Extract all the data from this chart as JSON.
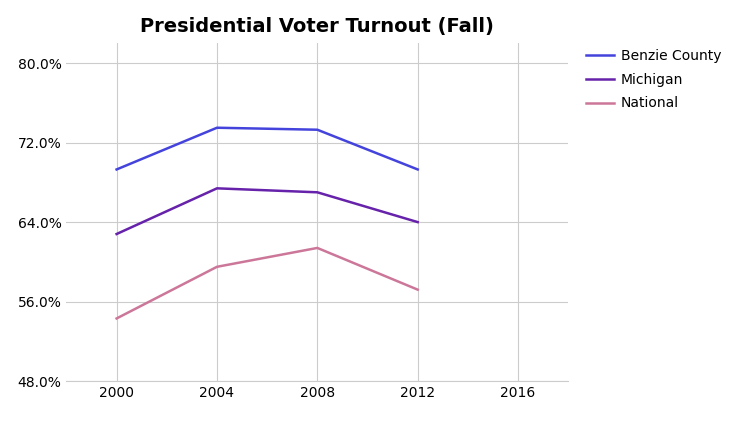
{
  "title": "Presidential Voter Turnout (Fall)",
  "years": [
    2000,
    2004,
    2008,
    2012
  ],
  "x_ticks": [
    2000,
    2004,
    2008,
    2012,
    2016
  ],
  "benzie_county": [
    0.693,
    0.735,
    0.733,
    0.693
  ],
  "michigan": [
    0.628,
    0.674,
    0.67,
    0.64
  ],
  "national": [
    0.543,
    0.595,
    0.614,
    0.572
  ],
  "ylim": [
    0.48,
    0.82
  ],
  "y_ticks": [
    0.48,
    0.56,
    0.64,
    0.72,
    0.8
  ],
  "y_tick_labels": [
    "48.0%",
    "56.0%",
    "64.0%",
    "72.0%",
    "80.0%"
  ],
  "colors": {
    "benzie": "#4444dd",
    "michigan": "#6622aa",
    "national": "#cc7799"
  },
  "legend_labels": [
    "Benzie County",
    "Michigan",
    "National"
  ],
  "background_color": "#ffffff",
  "grid_color": "#cccccc",
  "line_width": 1.8,
  "xlim": [
    1998,
    2018
  ],
  "title_fontsize": 14,
  "tick_fontsize": 10,
  "legend_fontsize": 10
}
